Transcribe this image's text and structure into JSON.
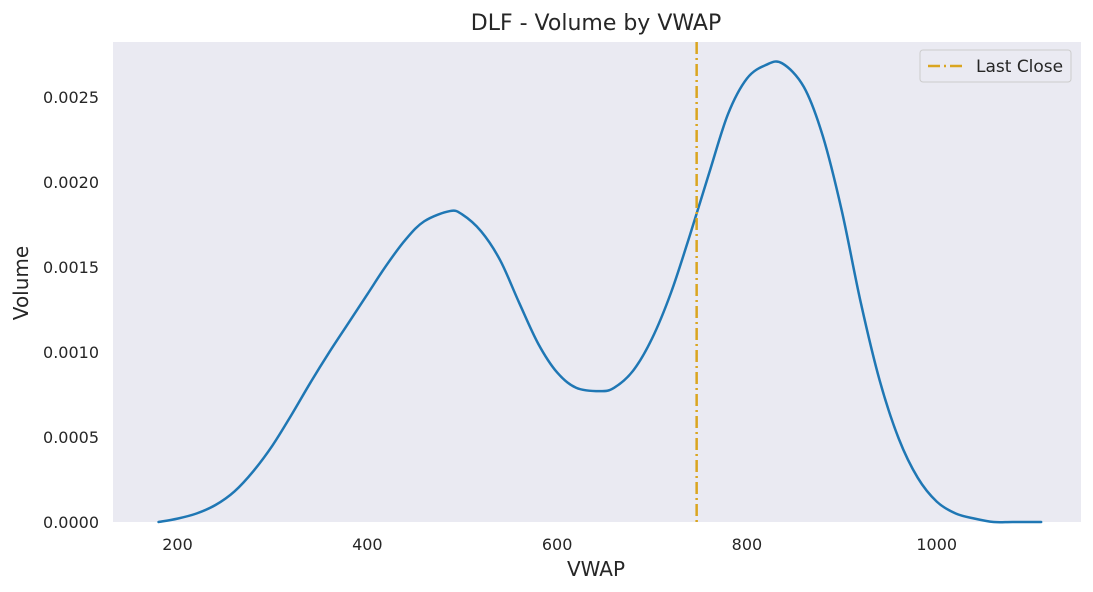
{
  "chart_data": {
    "type": "line",
    "title": "DLF - Volume by VWAP",
    "xlabel": "VWAP",
    "ylabel": "Volume",
    "xlim": [
      132,
      1152
    ],
    "ylim": [
      0,
      0.002825
    ],
    "xticks": [
      200,
      400,
      600,
      800,
      1000
    ],
    "xtick_labels": [
      "200",
      "400",
      "600",
      "800",
      "1000"
    ],
    "yticks": [
      0,
      0.0005,
      0.001,
      0.0015,
      0.002,
      0.0025
    ],
    "ytick_labels": [
      "0.0000",
      "0.0005",
      "0.0010",
      "0.0015",
      "0.0020",
      "0.0025"
    ],
    "grid": false,
    "legend_position": "top-right",
    "background_color": "#eaeaf2",
    "series": [
      {
        "type": "line",
        "color": "#1f77b4",
        "x": [
          180,
          200,
          220,
          240,
          260,
          280,
          300,
          320,
          340,
          360,
          380,
          400,
          420,
          440,
          460,
          487,
          500,
          520,
          540,
          560,
          580,
          600,
          620,
          645,
          660,
          680,
          700,
          720,
          740,
          760,
          780,
          800,
          820,
          837,
          860,
          880,
          900,
          920,
          940,
          960,
          980,
          1000,
          1020,
          1040,
          1060,
          1080,
          1110
        ],
        "y": [
          0.0,
          2e-05,
          5e-05,
          0.0001,
          0.00018,
          0.0003,
          0.00045,
          0.00063,
          0.00082,
          0.001,
          0.00117,
          0.00134,
          0.00151,
          0.00166,
          0.00177,
          0.00183,
          0.00181,
          0.00171,
          0.00154,
          0.00129,
          0.00105,
          0.00088,
          0.00079,
          0.00077,
          0.00079,
          0.00089,
          0.00108,
          0.00135,
          0.00169,
          0.00205,
          0.0024,
          0.00261,
          0.00269,
          0.0027,
          0.00256,
          0.00227,
          0.00183,
          0.00129,
          0.00083,
          0.00049,
          0.00026,
          0.00012,
          5e-05,
          2e-05,
          0.0,
          0.0,
          0.0
        ]
      }
    ],
    "reference_lines": [
      {
        "name": "Last Close",
        "orientation": "vertical",
        "x": 747,
        "color": "#daa520",
        "style": "dash-dot"
      }
    ]
  }
}
